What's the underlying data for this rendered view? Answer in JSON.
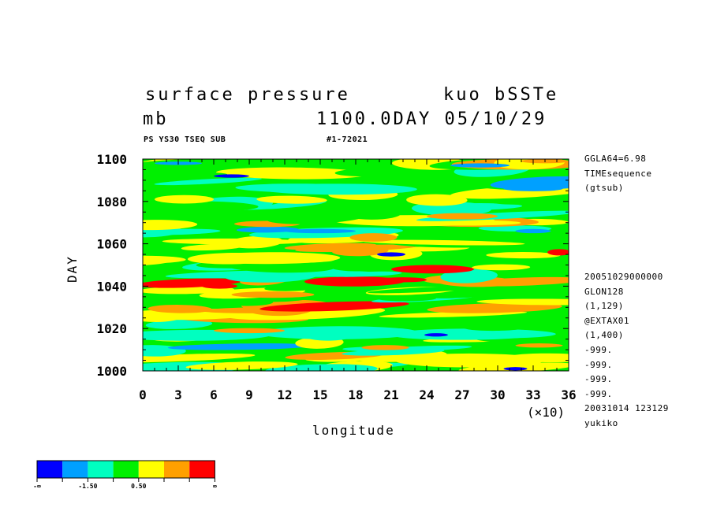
{
  "header": {
    "title_left": "surface pressure",
    "title_right": "kuo bSSTe",
    "unit": "mb",
    "day_info": "1100.0DAY 05/10/29",
    "sub_left": "PS YS30 TSEQ SUB",
    "sub_right": "#1-72021"
  },
  "side_info": [
    "GGLA64=6.98",
    "TIMEsequence",
    "(gtsub)"
  ],
  "side_info2": [
    "20051029000000",
    "GLON128",
    "(1,129)",
    "@EXTAX01",
    "(1,400)",
    "-999.",
    "-999.",
    "-999.",
    "-999.",
    "20031014 123129",
    "yukiko"
  ],
  "chart_data": {
    "type": "heatmap",
    "title": "surface pressure",
    "xlabel": "longitude",
    "x_multiplier_label": "(×10)",
    "ylabel": "DAY",
    "x_ticks": [
      "0",
      "3",
      "6",
      "9",
      "12",
      "15",
      "18",
      "21",
      "24",
      "27",
      "30",
      "33",
      "36"
    ],
    "y_ticks": [
      "1000",
      "1020",
      "1040",
      "1060",
      "1080",
      "1100"
    ],
    "xlim": [
      0,
      36
    ],
    "ylim": [
      1000,
      1100
    ],
    "colorbar": {
      "colors": [
        "#0000ff",
        "#00a0ff",
        "#00ffc0",
        "#00f000",
        "#ffff00",
        "#ffa000",
        "#ff0000"
      ],
      "labels": [
        "-∞",
        "-1.50",
        "0.50",
        "∞"
      ]
    },
    "bands": [
      {
        "day": 1002,
        "level": 3
      },
      {
        "day": 1006,
        "level": 4
      },
      {
        "day": 1010,
        "level": 2
      },
      {
        "day": 1014,
        "level": 4
      },
      {
        "day": 1018,
        "level": 2
      },
      {
        "day": 1022,
        "level": 3
      },
      {
        "day": 1026,
        "level": 4
      },
      {
        "day": 1030,
        "level": 5
      },
      {
        "day": 1034,
        "level": 3
      },
      {
        "day": 1038,
        "level": 4
      },
      {
        "day": 1042,
        "level": 5
      },
      {
        "day": 1046,
        "level": 2
      },
      {
        "day": 1050,
        "level": 3
      },
      {
        "day": 1054,
        "level": 4
      },
      {
        "day": 1058,
        "level": 5
      },
      {
        "day": 1062,
        "level": 3
      },
      {
        "day": 1066,
        "level": 2
      },
      {
        "day": 1070,
        "level": 4
      },
      {
        "day": 1074,
        "level": 3
      },
      {
        "day": 1078,
        "level": 2
      },
      {
        "day": 1082,
        "level": 4
      },
      {
        "day": 1086,
        "level": 3
      },
      {
        "day": 1090,
        "level": 2
      },
      {
        "day": 1094,
        "level": 3
      },
      {
        "day": 1098,
        "level": 4
      }
    ],
    "blobs": [
      {
        "lon": 24.5,
        "day": 1048,
        "lonw": 3.5,
        "dayw": 2,
        "level": 6
      },
      {
        "lon": 35.2,
        "day": 1056,
        "lonw": 1.0,
        "dayw": 1.5,
        "level": 6
      },
      {
        "lon": 6.5,
        "day": 1040,
        "lonw": 1.5,
        "dayw": 1.2,
        "level": 6
      },
      {
        "lon": 22,
        "day": 1043,
        "lonw": 2.0,
        "dayw": 1.2,
        "level": 6
      },
      {
        "lon": 21,
        "day": 1055,
        "lonw": 1.2,
        "dayw": 1.0,
        "level": 0
      },
      {
        "lon": 7.5,
        "day": 1092,
        "lonw": 1.5,
        "dayw": 0.8,
        "level": 0
      },
      {
        "lon": 31.5,
        "day": 1001,
        "lonw": 1.0,
        "dayw": 0.8,
        "level": 0
      },
      {
        "lon": 24.8,
        "day": 1017,
        "lonw": 1.0,
        "dayw": 0.8,
        "level": 0
      },
      {
        "lon": 33,
        "day": 1066,
        "lonw": 1.5,
        "dayw": 1.0,
        "level": 1
      },
      {
        "lon": 3,
        "day": 1098,
        "lonw": 2.0,
        "dayw": 0.8,
        "level": 1
      },
      {
        "lon": 28.5,
        "day": 1097,
        "lonw": 2.5,
        "dayw": 1.0,
        "level": 1
      },
      {
        "lon": 15,
        "day": 1066,
        "lonw": 3.0,
        "dayw": 1.0,
        "level": 1
      },
      {
        "lon": 33,
        "day": 1086,
        "lonw": 2.5,
        "dayw": 1.2,
        "level": 1
      },
      {
        "lon": 19.5,
        "day": 1063,
        "lonw": 2.0,
        "dayw": 2.0,
        "level": 5
      },
      {
        "lon": 27,
        "day": 1073,
        "lonw": 3.0,
        "dayw": 1.5,
        "level": 5
      },
      {
        "lon": 11,
        "day": 1036,
        "lonw": 3.5,
        "dayw": 1.5,
        "level": 5
      },
      {
        "lon": 9,
        "day": 1019,
        "lonw": 3.0,
        "dayw": 1.2,
        "level": 5
      },
      {
        "lon": 20.5,
        "day": 1011,
        "lonw": 2.0,
        "dayw": 1.2,
        "level": 5
      },
      {
        "lon": 33.5,
        "day": 1012,
        "lonw": 2.0,
        "dayw": 1.0,
        "level": 5
      },
      {
        "lon": 3.5,
        "day": 1081,
        "lonw": 2.5,
        "dayw": 2.0,
        "level": 4
      },
      {
        "lon": 34,
        "day": 1099,
        "lonw": 2.0,
        "dayw": 1.0,
        "level": 5
      }
    ]
  }
}
